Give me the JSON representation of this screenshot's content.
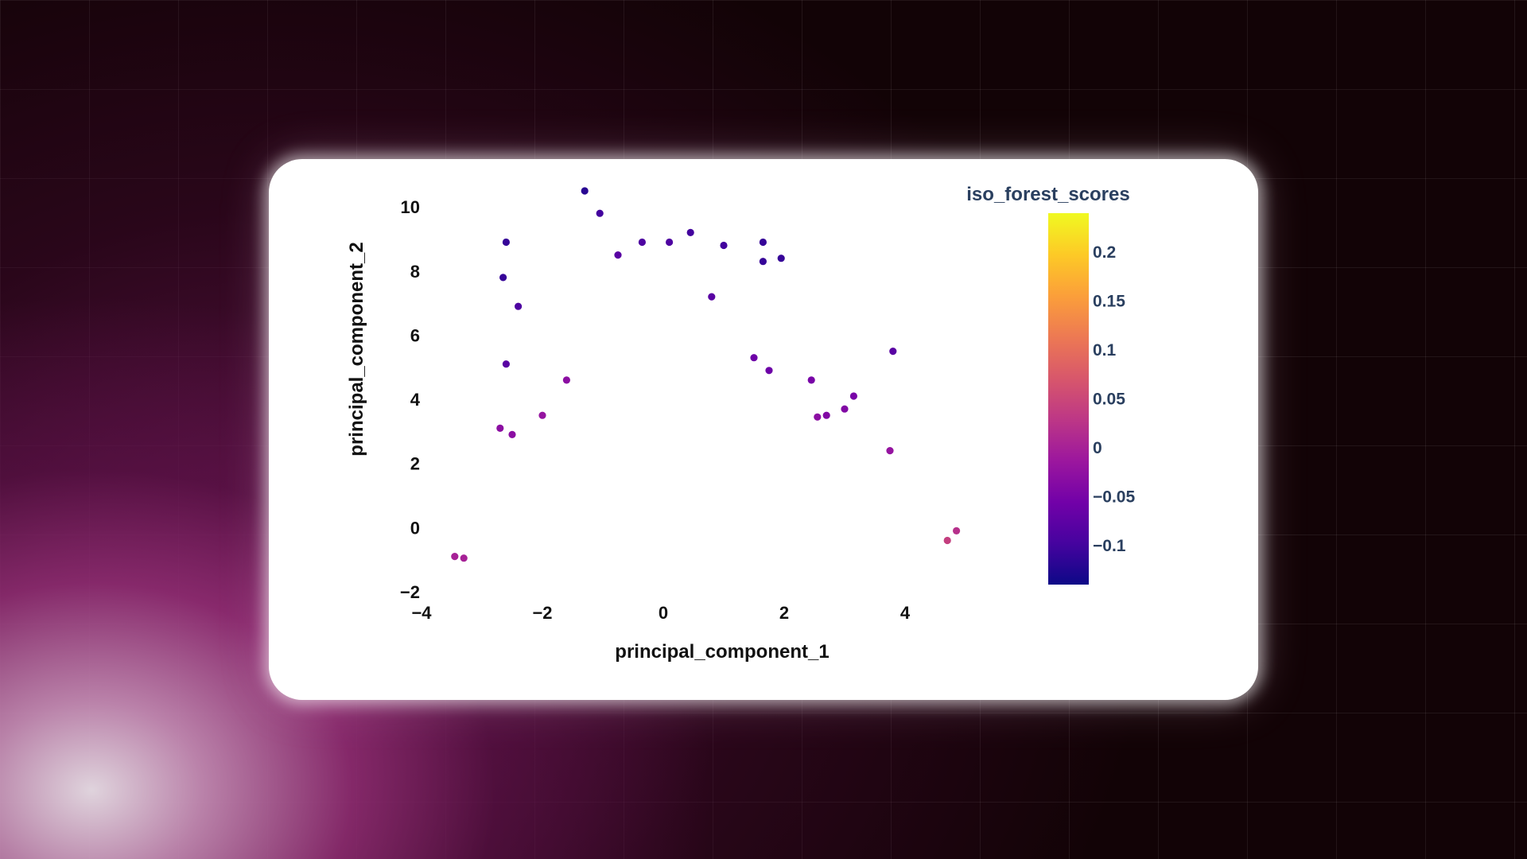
{
  "chart_data": {
    "type": "scatter",
    "xlabel": "principal_component_1",
    "ylabel": "principal_component_2",
    "xlim": [
      -4,
      5
    ],
    "ylim": [
      -2,
      10.5
    ],
    "x_ticks": [
      "−4",
      "−2",
      "0",
      "2",
      "4"
    ],
    "y_ticks": [
      "−2",
      "0",
      "2",
      "4",
      "6",
      "8",
      "10"
    ],
    "colorbar": {
      "title": "iso_forest_scores",
      "range": [
        -0.14,
        0.24
      ],
      "ticks": [
        "0.2",
        "0.15",
        "0.1",
        "0.05",
        "0",
        "−0.05",
        "−0.1"
      ],
      "tick_values": [
        0.2,
        0.15,
        0.1,
        0.05,
        0,
        -0.05,
        -0.1
      ],
      "colorscale": [
        "#0d0887",
        "#46039f",
        "#7201a8",
        "#9c179e",
        "#bd3786",
        "#d8576b",
        "#ed7953",
        "#fb9f3a",
        "#fdca26",
        "#f0f921"
      ]
    },
    "points": [
      [
        -1.3,
        10.5,
        -0.12
      ],
      [
        -1.05,
        9.8,
        -0.1
      ],
      [
        -2.6,
        8.9,
        -0.11
      ],
      [
        -2.65,
        7.8,
        -0.11
      ],
      [
        -2.4,
        6.9,
        -0.09
      ],
      [
        -2.6,
        5.1,
        -0.08
      ],
      [
        -0.75,
        8.5,
        -0.08
      ],
      [
        -0.35,
        8.9,
        -0.09
      ],
      [
        0.1,
        8.9,
        -0.09
      ],
      [
        0.45,
        9.2,
        -0.1
      ],
      [
        1.0,
        8.8,
        -0.1
      ],
      [
        1.65,
        8.9,
        -0.11
      ],
      [
        1.95,
        8.4,
        -0.11
      ],
      [
        1.65,
        8.3,
        -0.11
      ],
      [
        0.8,
        7.2,
        -0.08
      ],
      [
        1.5,
        5.3,
        -0.06
      ],
      [
        1.75,
        4.9,
        -0.06
      ],
      [
        2.45,
        4.6,
        -0.05
      ],
      [
        3.8,
        5.5,
        -0.08
      ],
      [
        3.15,
        4.1,
        -0.05
      ],
      [
        3.0,
        3.7,
        -0.04
      ],
      [
        -2.7,
        3.1,
        -0.03
      ],
      [
        -2.5,
        2.9,
        -0.03
      ],
      [
        -3.45,
        -0.9,
        0.0
      ],
      [
        -3.3,
        -0.95,
        0.0
      ],
      [
        4.85,
        -0.1,
        0.02
      ],
      [
        4.7,
        -0.4,
        0.04
      ],
      [
        3.75,
        2.4,
        -0.02
      ],
      [
        2.55,
        3.45,
        -0.03
      ],
      [
        2.7,
        3.5,
        -0.04
      ],
      [
        -1.6,
        4.6,
        -0.03
      ],
      [
        -2.0,
        3.5,
        -0.02
      ]
    ]
  }
}
